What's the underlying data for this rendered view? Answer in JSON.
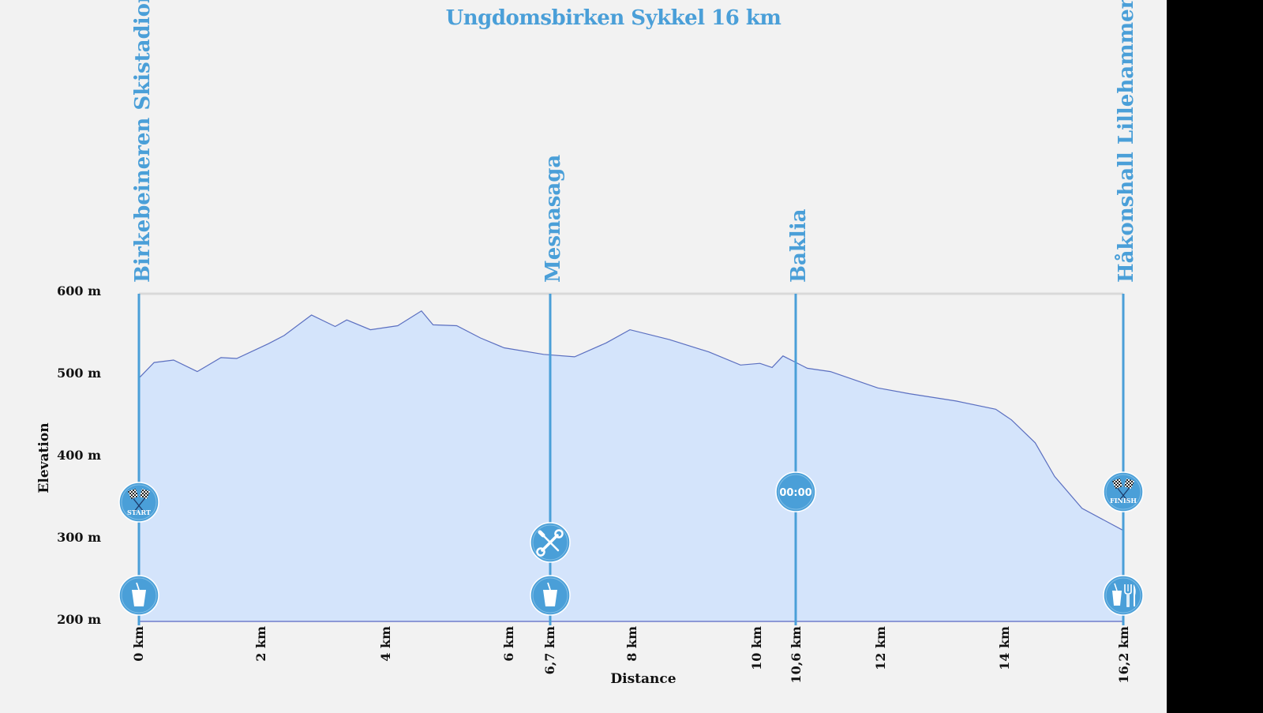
{
  "chart_data": {
    "type": "area",
    "title": "Ungdomsbirken Sykkel 16 km",
    "xlabel": "Distance",
    "ylabel": "Elevation",
    "ylim": [
      200,
      600
    ],
    "xlim": [
      0,
      16.2
    ],
    "y_ticks": [
      "200 m",
      "300 m",
      "400 m",
      "500 m",
      "600 m"
    ],
    "x_ticks": [
      {
        "km": 0,
        "label": "0 km"
      },
      {
        "km": 2,
        "label": "2 km"
      },
      {
        "km": 4,
        "label": "4 km"
      },
      {
        "km": 6,
        "label": "6 km"
      },
      {
        "km": 6.7,
        "label": "6,7 km"
      },
      {
        "km": 8,
        "label": "8 km"
      },
      {
        "km": 10,
        "label": "10 km"
      },
      {
        "km": 10.6,
        "label": "10,6 km"
      },
      {
        "km": 12,
        "label": "12 km"
      },
      {
        "km": 14,
        "label": "14 km"
      },
      {
        "km": 16.2,
        "label": "16,2 km"
      }
    ],
    "series": [
      {
        "name": "Elevation",
        "fill": "#d4e4fb",
        "line": "#5b6fc0",
        "points": [
          [
            0.0,
            497
          ],
          [
            0.25,
            516
          ],
          [
            0.57,
            519
          ],
          [
            0.96,
            505
          ],
          [
            1.35,
            522
          ],
          [
            1.61,
            521
          ],
          [
            2.13,
            539
          ],
          [
            2.39,
            549
          ],
          [
            2.84,
            574
          ],
          [
            3.23,
            560
          ],
          [
            3.42,
            568
          ],
          [
            3.81,
            556
          ],
          [
            4.26,
            561
          ],
          [
            4.65,
            579
          ],
          [
            4.84,
            562
          ],
          [
            5.23,
            561
          ],
          [
            5.62,
            546
          ],
          [
            6.01,
            534
          ],
          [
            6.66,
            526
          ],
          [
            7.17,
            523
          ],
          [
            7.69,
            540
          ],
          [
            8.08,
            556
          ],
          [
            8.73,
            544
          ],
          [
            9.38,
            529
          ],
          [
            9.9,
            513
          ],
          [
            10.22,
            515
          ],
          [
            10.42,
            510
          ],
          [
            10.6,
            524
          ],
          [
            11.0,
            509
          ],
          [
            11.38,
            505
          ],
          [
            11.77,
            495
          ],
          [
            12.16,
            485
          ],
          [
            12.68,
            478
          ],
          [
            13.45,
            469
          ],
          [
            14.1,
            459
          ],
          [
            14.36,
            446
          ],
          [
            14.75,
            418
          ],
          [
            15.07,
            377
          ],
          [
            15.52,
            338
          ],
          [
            16.2,
            311
          ]
        ]
      }
    ],
    "locations": [
      {
        "km": 0,
        "name": "Birkebeineren Skistadion",
        "icons": [
          "start-flags",
          "drink"
        ]
      },
      {
        "km": 6.7,
        "name": "Mesnasaga",
        "icons": [
          "repair-tools",
          "drink"
        ]
      },
      {
        "km": 10.6,
        "name": "Baklia",
        "icons": [
          "timing"
        ]
      },
      {
        "km": 16.2,
        "name": "Håkonshall Lillehammer",
        "icons": [
          "finish-flags",
          "food-drink"
        ]
      }
    ]
  },
  "labels": {
    "title": "Ungdomsbirken Sykkel 16 km",
    "xlabel": "Distance",
    "ylabel": "Elevation",
    "start_text": "START",
    "finish_text": "FINISH",
    "timing_text": "00:00",
    "loc0": "Birkebeineren Skistadion",
    "loc1": "Mesnasaga",
    "loc2": "Baklia",
    "loc3": "Håkonshall Lillehammer",
    "y200": "200 m",
    "y300": "300 m",
    "y400": "400 m",
    "y500": "500 m",
    "y600": "600 m",
    "x0": "0 km",
    "x2": "2 km",
    "x4": "4 km",
    "x6": "6 km",
    "x67": "6,7 km",
    "x8": "8 km",
    "x10": "10 km",
    "x106": "10,6 km",
    "x12": "12 km",
    "x14": "14 km",
    "x162": "16,2 km"
  },
  "colors": {
    "accent": "#4a9fd8",
    "area_fill": "#d4e4fb",
    "area_line": "#5b6fc0",
    "background": "#f2f2f2"
  }
}
